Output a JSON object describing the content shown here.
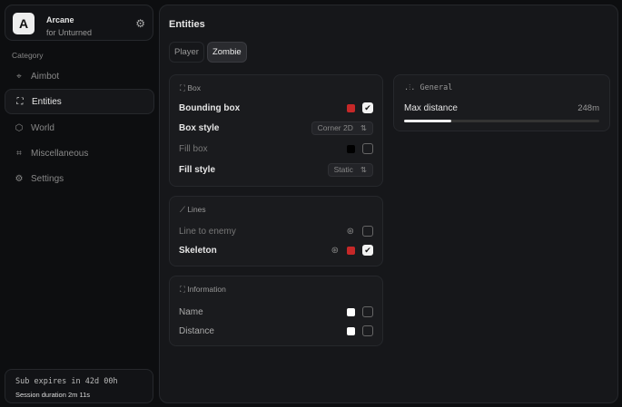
{
  "brand": {
    "logo": "A",
    "name": "Arcane",
    "subtitle": "for Unturned",
    "icon": "gear-icon"
  },
  "sidebar": {
    "category_label": "Category",
    "items": [
      {
        "label": "Aimbot",
        "icon": "crosshair-icon",
        "active": false
      },
      {
        "label": "Entities",
        "icon": "entity-icon",
        "active": true
      },
      {
        "label": "World",
        "icon": "cube-icon",
        "active": false
      },
      {
        "label": "Miscellaneous",
        "icon": "grid-icon",
        "active": false
      },
      {
        "label": "Settings",
        "icon": "gear-icon",
        "active": false
      }
    ]
  },
  "subscription": {
    "expires": "Sub expires in 42d 00h",
    "session": "Session duration 2m 11s"
  },
  "main": {
    "title": "Entities",
    "tabs": [
      {
        "label": "Player",
        "active": false
      },
      {
        "label": "Zombie",
        "active": true
      }
    ]
  },
  "box": {
    "title": "Box",
    "bounding_box": {
      "label": "Bounding box",
      "color": "#c62828",
      "checked": true
    },
    "box_style": {
      "label": "Box style",
      "value": "Corner 2D"
    },
    "fill_box": {
      "label": "Fill box",
      "color": "#000000",
      "checked": false
    },
    "fill_style": {
      "label": "Fill style",
      "value": "Static"
    }
  },
  "lines": {
    "title": "Lines",
    "line_to_enemy": {
      "label": "Line to enemy",
      "checked": false
    },
    "skeleton": {
      "label": "Skeleton",
      "color": "#c62828",
      "checked": true
    }
  },
  "information": {
    "title": "Information",
    "name": {
      "label": "Name",
      "color": "#ffffff",
      "checked": false
    },
    "distance": {
      "label": "Distance",
      "color": "#ffffff",
      "checked": false
    }
  },
  "general": {
    "title": "General",
    "max_distance": {
      "label": "Max distance",
      "value": "248m",
      "fraction": 0.24
    }
  }
}
